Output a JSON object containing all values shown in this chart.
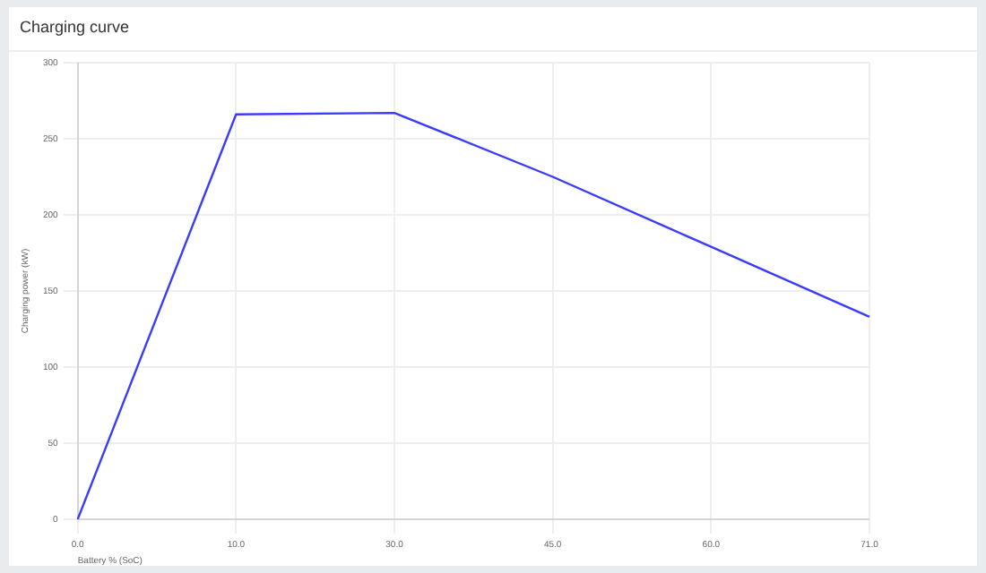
{
  "chart_data": {
    "type": "line",
    "title": "Charging curve",
    "xlabel": "Battery % (SoC)",
    "ylabel": "Charging power (kW)",
    "categories": [
      "0.0",
      "10.0",
      "30.0",
      "45.0",
      "60.0",
      "71.0"
    ],
    "series": [
      {
        "color": "#3b3bff",
        "values": [
          0,
          266,
          267,
          225,
          179,
          133
        ]
      }
    ],
    "ylim": [
      0,
      300
    ],
    "yticks": [
      0,
      50,
      100,
      150,
      200,
      250,
      300
    ],
    "grid": true,
    "legend": false,
    "marker": "none",
    "line_style": "solid"
  }
}
